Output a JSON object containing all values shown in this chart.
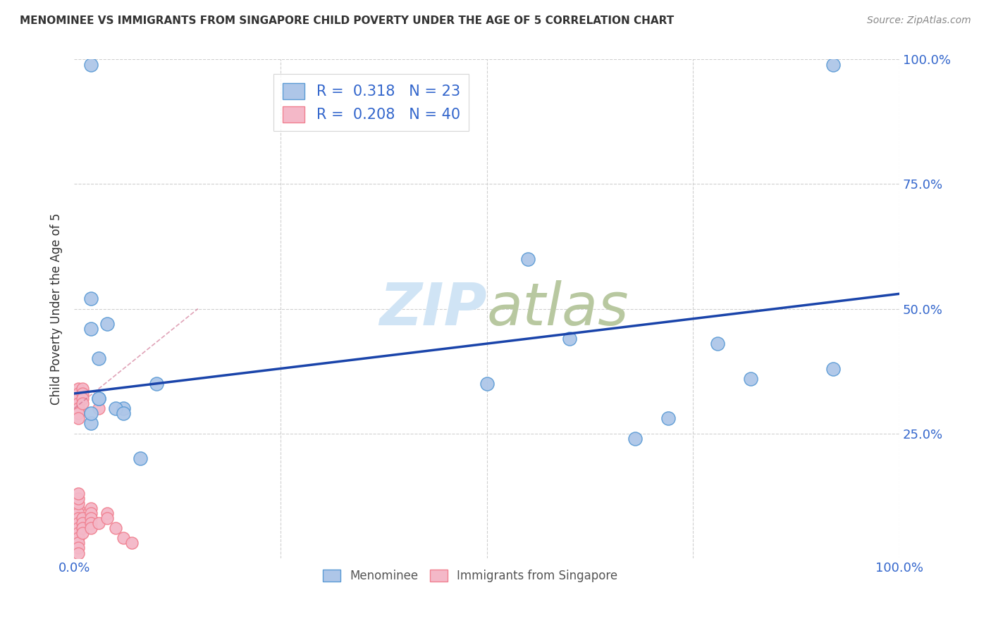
{
  "title": "MENOMINEE VS IMMIGRANTS FROM SINGAPORE CHILD POVERTY UNDER THE AGE OF 5 CORRELATION CHART",
  "source": "Source: ZipAtlas.com",
  "ylabel": "Child Poverty Under the Age of 5",
  "xlim": [
    0,
    1
  ],
  "ylim": [
    0,
    1
  ],
  "menominee_color": "#aec6e8",
  "singapore_color": "#f4b8c8",
  "menominee_edge": "#5b9bd5",
  "singapore_edge": "#f08090",
  "trend_blue": "#1a44aa",
  "trend_pink": "#cc6688",
  "watermark_color": "#d0e4f5",
  "legend_R_blue": "0.318",
  "legend_N_blue": "23",
  "legend_R_pink": "0.208",
  "legend_N_pink": "40",
  "menominee_x": [
    0.02,
    0.02,
    0.02,
    0.03,
    0.04,
    0.06,
    0.08,
    0.02,
    0.02,
    0.55,
    0.6,
    0.68,
    0.72,
    0.78,
    0.82,
    0.92,
    0.92,
    0.5,
    0.1,
    0.05,
    0.03,
    0.03,
    0.06
  ],
  "menominee_y": [
    0.99,
    0.52,
    0.46,
    0.4,
    0.47,
    0.3,
    0.2,
    0.27,
    0.29,
    0.6,
    0.44,
    0.24,
    0.28,
    0.43,
    0.36,
    0.38,
    0.99,
    0.35,
    0.35,
    0.3,
    0.32,
    0.32,
    0.29
  ],
  "singapore_x": [
    0.005,
    0.005,
    0.005,
    0.005,
    0.005,
    0.005,
    0.005,
    0.005,
    0.005,
    0.005,
    0.005,
    0.005,
    0.005,
    0.005,
    0.005,
    0.005,
    0.005,
    0.005,
    0.005,
    0.005,
    0.01,
    0.01,
    0.01,
    0.01,
    0.01,
    0.01,
    0.01,
    0.01,
    0.02,
    0.02,
    0.02,
    0.02,
    0.02,
    0.03,
    0.03,
    0.04,
    0.04,
    0.05,
    0.06,
    0.07
  ],
  "singapore_y": [
    0.34,
    0.33,
    0.32,
    0.31,
    0.3,
    0.29,
    0.28,
    0.1,
    0.09,
    0.08,
    0.07,
    0.06,
    0.05,
    0.04,
    0.03,
    0.02,
    0.01,
    0.11,
    0.12,
    0.13,
    0.34,
    0.33,
    0.32,
    0.31,
    0.08,
    0.07,
    0.06,
    0.05,
    0.1,
    0.09,
    0.08,
    0.07,
    0.06,
    0.3,
    0.07,
    0.09,
    0.08,
    0.06,
    0.04,
    0.03
  ],
  "blue_trend_x": [
    0.0,
    1.0
  ],
  "blue_trend_y": [
    0.33,
    0.53
  ],
  "pink_trend_x": [
    0.0,
    0.15
  ],
  "pink_trend_y": [
    0.3,
    0.5
  ],
  "background_color": "#ffffff",
  "grid_color": "#d0d0d0"
}
